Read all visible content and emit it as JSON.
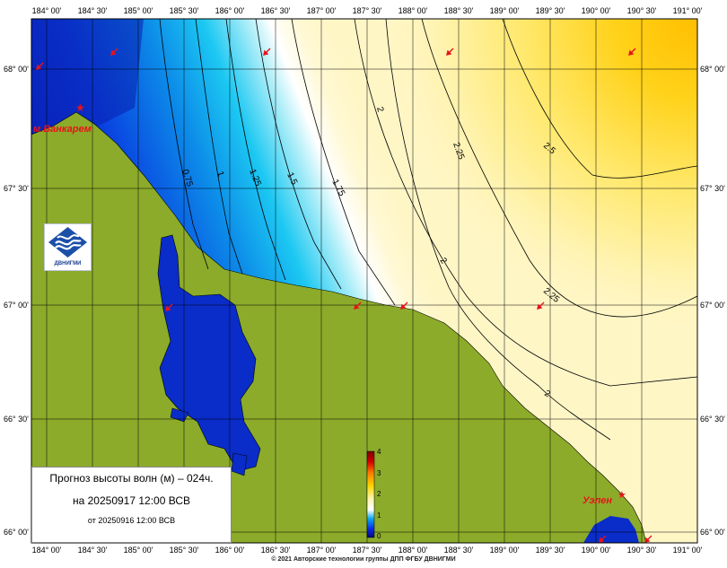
{
  "map": {
    "top_lon_labels": [
      "184° 00'",
      "184° 30'",
      "185° 00'",
      "185° 30'",
      "186° 00'",
      "186° 30'",
      "187° 00'",
      "187° 30'",
      "188° 00'",
      "188° 30'",
      "189° 00'",
      "189° 30'",
      "190° 00'",
      "190° 30'",
      "191° 00'"
    ],
    "bottom_lon_labels": [
      "184° 00'",
      "184° 30'",
      "185° 00'",
      "185° 30'",
      "186° 00'",
      "186° 30'",
      "187° 00'",
      "187° 30'",
      "188° 00'",
      "188° 30'",
      "189° 00'",
      "189° 30'",
      "190° 00'",
      "190° 30'",
      "191° 00'"
    ],
    "lat_labels": [
      "68° 00'",
      "67° 30'",
      "67° 00'",
      "66° 30'",
      "66° 00'"
    ],
    "isolines": [
      "0.75",
      "1",
      "1.25",
      "1.5",
      "1.75",
      "2",
      "2.25",
      "2.5",
      "2",
      "2.25",
      "2"
    ],
    "places": [
      {
        "name": "м.Ванкарем"
      },
      {
        "name": "Уэлен"
      }
    ],
    "colorbar": {
      "tick_labels": [
        "4",
        "3",
        "2",
        "1",
        "0"
      ],
      "stops": [
        "#08087a",
        "#0a2ce6",
        "#0fa8f0",
        "#ffffff",
        "#fff4b0",
        "#ffd400",
        "#ff7a00",
        "#d40000",
        "#7a0000"
      ]
    },
    "colors": {
      "land": "#8cab2a",
      "deep_blue": "#0a2cc8",
      "grid": "#000000",
      "marker": "#e8121a"
    }
  },
  "legend": {
    "title": "Прогноз высоты волн (м) – 024ч.",
    "valid_time": "на 20250917 12:00 ВСВ",
    "issued": "от 20250916 12:00 ВСВ"
  },
  "logo": {
    "text": "ДВНИГМИ"
  },
  "footer": {
    "copyright": "© 2021 Авторские технологии группы ДПП ФГБУ ДВНИГМИ"
  }
}
